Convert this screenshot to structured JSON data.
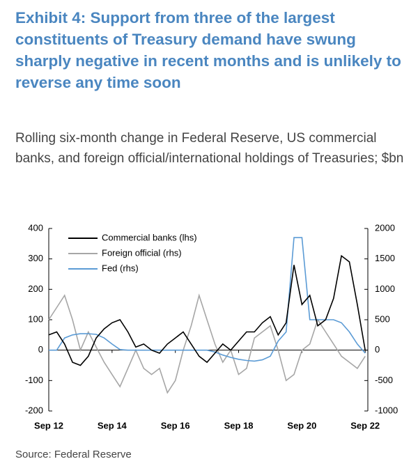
{
  "chart_data": {
    "type": "line",
    "title": "Exhibit 4: Support from three of the largest constituents of Treasury demand have swung sharply negative in recent months and is unlikely to reverse any time soon",
    "subtitle": "Rolling six-month change in Federal Reserve, US commercial banks, and foreign official/international holdings of Treasuries; $bn",
    "source": "Source: Federal Reserve",
    "x": [
      "2012-09",
      "2012-12",
      "2013-03",
      "2013-06",
      "2013-09",
      "2013-12",
      "2014-03",
      "2014-06",
      "2014-09",
      "2014-12",
      "2015-03",
      "2015-06",
      "2015-09",
      "2015-12",
      "2016-03",
      "2016-06",
      "2016-09",
      "2016-12",
      "2017-03",
      "2017-06",
      "2017-09",
      "2017-12",
      "2018-03",
      "2018-06",
      "2018-09",
      "2018-12",
      "2019-03",
      "2019-06",
      "2019-09",
      "2019-12",
      "2020-03",
      "2020-06",
      "2020-09",
      "2020-12",
      "2021-03",
      "2021-06",
      "2021-09",
      "2021-12",
      "2022-03",
      "2022-06",
      "2022-09"
    ],
    "series": [
      {
        "name": "Commercial banks (lhs)",
        "color": "#000000",
        "axis": "y",
        "values": [
          50,
          60,
          20,
          -40,
          -50,
          -20,
          40,
          70,
          90,
          100,
          60,
          10,
          20,
          0,
          -10,
          20,
          40,
          60,
          20,
          -20,
          -40,
          -10,
          20,
          0,
          30,
          60,
          60,
          90,
          110,
          50,
          90,
          280,
          150,
          180,
          80,
          100,
          170,
          310,
          290,
          150,
          0
        ]
      },
      {
        "name": "Foreign official (rhs)",
        "color": "#a6a6a6",
        "axis": "y2",
        "values": [
          500,
          700,
          900,
          500,
          0,
          300,
          50,
          -200,
          -400,
          -600,
          -300,
          0,
          -300,
          -400,
          -300,
          -700,
          -500,
          0,
          400,
          900,
          500,
          100,
          -200,
          0,
          -400,
          -300,
          200,
          300,
          400,
          0,
          -500,
          -400,
          0,
          100,
          500,
          300,
          100,
          -100,
          -200,
          -300,
          -100
        ]
      },
      {
        "name": "Fed (rhs)",
        "color": "#5b9bd5",
        "axis": "y2",
        "values": [
          0,
          0,
          200,
          250,
          270,
          270,
          260,
          200,
          100,
          10,
          0,
          0,
          0,
          0,
          0,
          0,
          0,
          0,
          0,
          0,
          0,
          -30,
          -80,
          -120,
          -150,
          -170,
          -180,
          -160,
          -100,
          150,
          300,
          1850,
          1850,
          500,
          500,
          500,
          500,
          450,
          300,
          100,
          -50
        ]
      }
    ],
    "xlim": [
      "2012-09",
      "2022-10"
    ],
    "xticks": [
      {
        "value": "2012-09",
        "label": "Sep 12"
      },
      {
        "value": "2014-09",
        "label": "Sep 14"
      },
      {
        "value": "2016-09",
        "label": "Sep 16"
      },
      {
        "value": "2018-09",
        "label": "Sep 18"
      },
      {
        "value": "2020-09",
        "label": "Sep 20"
      },
      {
        "value": "2022-09",
        "label": "Sep 22"
      }
    ],
    "ylim": [
      -200,
      400
    ],
    "yticks": [
      -200,
      -100,
      0,
      100,
      200,
      300,
      400
    ],
    "y2lim": [
      -1000,
      2000
    ],
    "y2ticks": [
      -1000,
      -500,
      0,
      500,
      1000,
      1500,
      2000
    ],
    "grid": false
  }
}
